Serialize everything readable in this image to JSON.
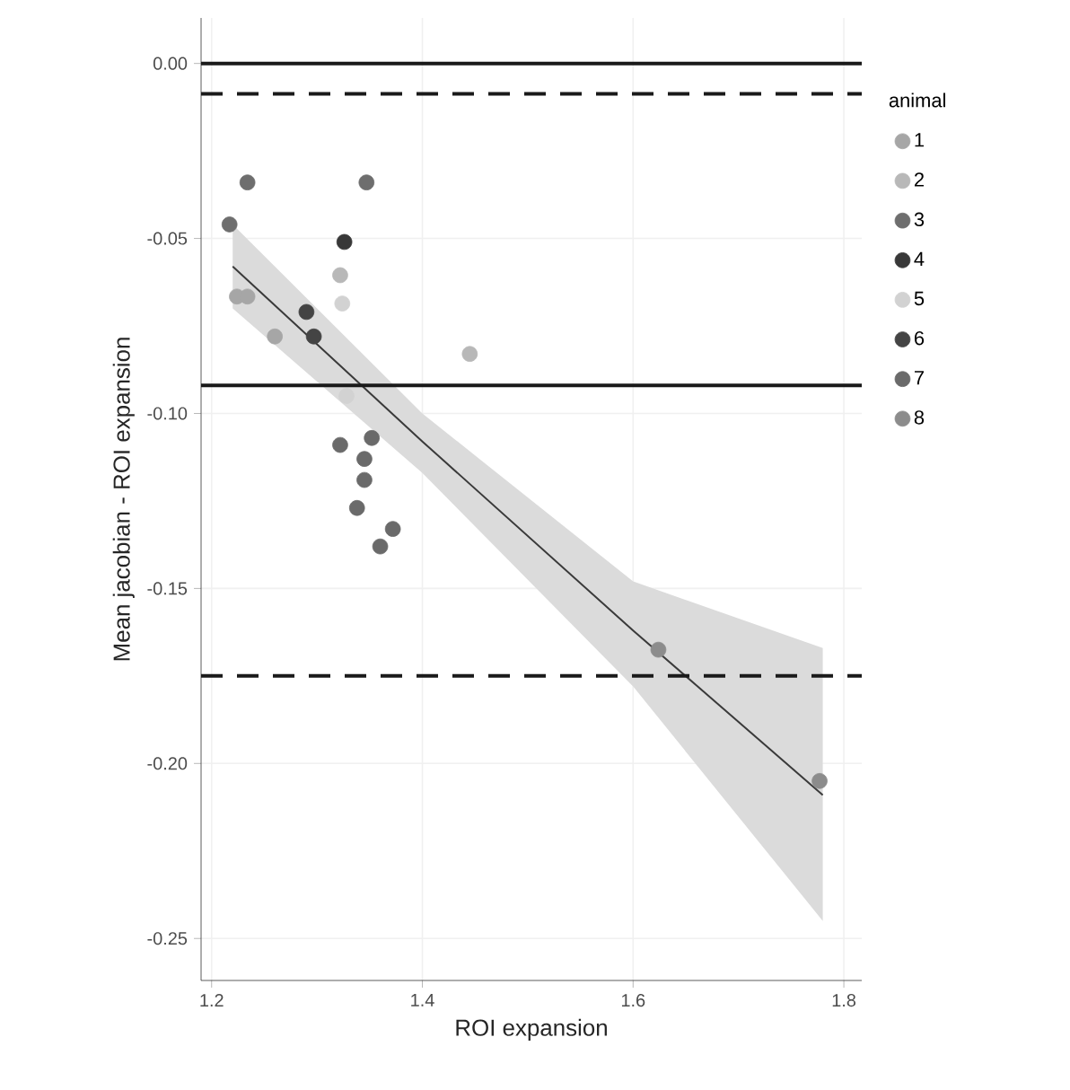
{
  "chart_data": {
    "type": "scatter",
    "xlabel": "ROI expansion",
    "ylabel": "Mean jacobian - ROI expansion",
    "legend_title": "animal",
    "legend": "right",
    "grid": true,
    "marker": "circle",
    "xlim": [
      1.19,
      1.817
    ],
    "ylim": [
      -0.262,
      0.013
    ],
    "xticks": [
      1.2,
      1.4,
      1.6,
      1.8
    ],
    "yticks": [
      {
        "value": 0,
        "label": "0.00"
      },
      {
        "value": -0.05,
        "label": "-0.05"
      },
      {
        "value": -0.1,
        "label": "-0.10"
      },
      {
        "value": -0.15,
        "label": "-0.15"
      },
      {
        "value": -0.2,
        "label": "-0.20"
      },
      {
        "value": -0.25,
        "label": "-0.25"
      }
    ],
    "ref_lines": [
      {
        "axis": "y",
        "value": 0,
        "line_style": "solid",
        "color": "#1a1a1a"
      },
      {
        "axis": "y",
        "value": -0.0087,
        "line_style": "dashed",
        "color": "#1a1a1a"
      },
      {
        "axis": "y",
        "value": -0.092,
        "line_style": "solid",
        "color": "#1a1a1a"
      },
      {
        "axis": "y",
        "value": -0.175,
        "line_style": "dashed",
        "color": "#1a1a1a"
      }
    ],
    "series": [
      {
        "name": "1",
        "color": "#a6a6a6",
        "x": [
          1.224,
          1.234,
          1.26
        ],
        "values": [
          -0.0666,
          -0.0666,
          -0.078
        ]
      },
      {
        "name": "2",
        "color": "#b8b8b8",
        "x": [
          1.322,
          1.445
        ],
        "values": [
          -0.0605,
          -0.083
        ]
      },
      {
        "name": "3",
        "color": "#6e6e6e",
        "x": [
          1.217,
          1.234,
          1.347
        ],
        "values": [
          -0.046,
          -0.034,
          -0.034
        ]
      },
      {
        "name": "4",
        "color": "#383838",
        "x": [
          1.326
        ],
        "values": [
          -0.051
        ]
      },
      {
        "name": "5",
        "color": "#d2d2d2",
        "x": [
          1.324,
          1.328
        ],
        "values": [
          -0.0686,
          -0.095
        ]
      },
      {
        "name": "6",
        "color": "#444444",
        "x": [
          1.29,
          1.297
        ],
        "values": [
          -0.071,
          -0.078
        ]
      },
      {
        "name": "7",
        "color": "#6a6a6a",
        "x": [
          1.352,
          1.322,
          1.345,
          1.345,
          1.338,
          1.372,
          1.36
        ],
        "values": [
          -0.107,
          -0.109,
          -0.113,
          -0.119,
          -0.127,
          -0.133,
          -0.138
        ]
      },
      {
        "name": "8",
        "color": "#8c8c8c",
        "x": [
          1.624,
          1.777
        ],
        "values": [
          -0.1675,
          -0.205
        ]
      },
      {
        "type": "line",
        "marker": "none",
        "color": "#3a3a3a",
        "x": [
          1.22,
          1.4,
          1.6,
          1.78
        ],
        "values": [
          -0.058,
          -0.108,
          -0.162,
          -0.209
        ],
        "lower": [
          -0.07,
          -0.117,
          -0.178,
          -0.245
        ],
        "upper": [
          -0.046,
          -0.1,
          -0.148,
          -0.167
        ]
      }
    ]
  }
}
